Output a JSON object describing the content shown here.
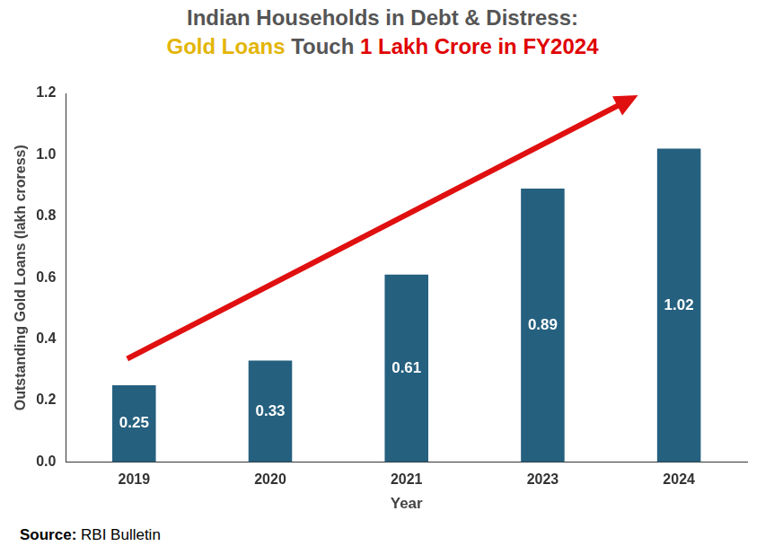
{
  "chart_data": {
    "type": "bar",
    "title": "Indian Households in Debt & Distress:",
    "subtitle": "Gold Loans Touch 1 Lakh Crore in FY2024",
    "y_label": "Outstanding Gold Loans (lakh croress)",
    "x_label": "Year",
    "source": "Source: RBI Bulletin",
    "categories": [
      "2019",
      "2020",
      "2021",
      "2023",
      "2024"
    ],
    "values": [
      0.25,
      0.33,
      0.61,
      0.89,
      1.02
    ],
    "color": "#25607f",
    "ylim": [
      0,
      1.2
    ],
    "yticks": [
      {
        "value": 0,
        "label": "0.0"
      },
      0.2,
      0.4,
      0.6,
      0.8,
      {
        "value": 1,
        "label": "1.0"
      },
      1.2
    ],
    "grid": false,
    "data_labels": true
  }
}
